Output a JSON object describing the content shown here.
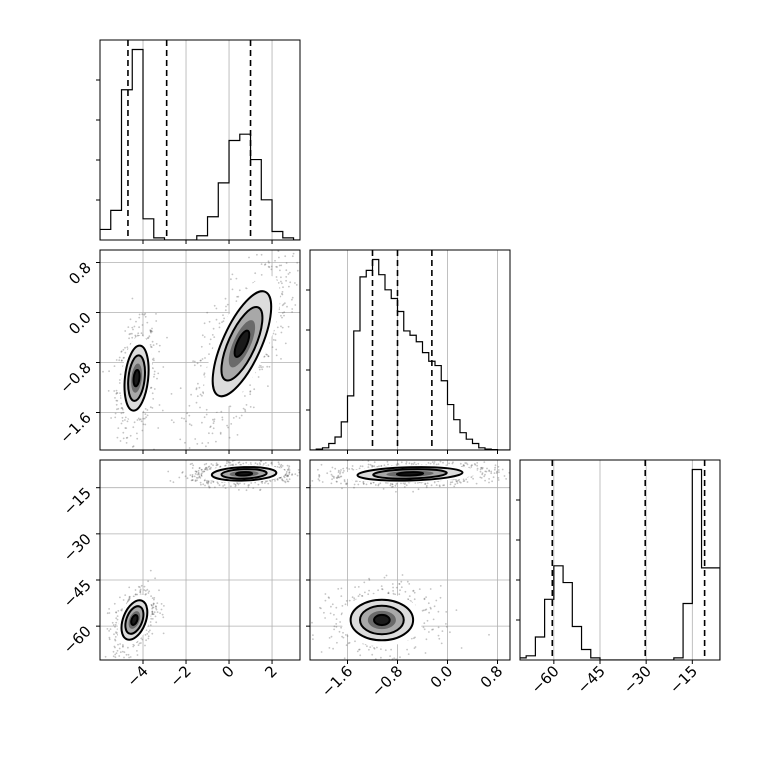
{
  "chart_data": {
    "type": "corner",
    "title": "",
    "parameters": [
      {
        "name": "p0",
        "label": "",
        "range": [
          -6,
          3.3
        ],
        "ticks": [
          -4,
          -2,
          0,
          2
        ],
        "tick_labels": [
          "−4",
          "−2",
          "0",
          "2"
        ]
      },
      {
        "name": "p1",
        "label": "",
        "range": [
          -2.2,
          1.0
        ],
        "ticks": [
          -1.6,
          -0.8,
          0.0,
          0.8
        ],
        "tick_labels": [
          "−1.6",
          "−0.8",
          "0.0",
          "0.8"
        ]
      },
      {
        "name": "p2",
        "label": "",
        "range": [
          -71,
          -6
        ],
        "ticks": [
          -60,
          -45,
          -30,
          -15
        ],
        "tick_labels": [
          "−60",
          "−45",
          "−30",
          "−15"
        ]
      }
    ],
    "grid": true,
    "histograms": [
      {
        "param": 0,
        "bin_width": 0.5,
        "centers": [
          -6.25,
          -5.75,
          -5.25,
          -4.75,
          -4.25,
          -3.75,
          -3.25,
          -2.75,
          -2.25,
          -1.75,
          -1.25,
          -0.75,
          -0.25,
          0.25,
          0.75,
          1.25,
          1.75,
          2.25,
          2.75,
          3.25
        ],
        "values": [
          0,
          0.05,
          0.14,
          0.71,
          0.9,
          0.1,
          0.01,
          0,
          0,
          0,
          0.02,
          0.11,
          0.27,
          0.47,
          0.5,
          0.38,
          0.19,
          0.04,
          0.01,
          0
        ],
        "quantiles": [
          -4.7,
          -2.9,
          1.0
        ]
      },
      {
        "param": 1,
        "bin_width": 0.1,
        "centers": [
          -2.15,
          -2.05,
          -1.95,
          -1.85,
          -1.75,
          -1.65,
          -1.55,
          -1.45,
          -1.35,
          -1.25,
          -1.15,
          -1.05,
          -0.95,
          -0.85,
          -0.75,
          -0.65,
          -0.55,
          -0.45,
          -0.35,
          -0.25,
          -0.15,
          -0.05,
          0.05,
          0.15,
          0.25,
          0.35,
          0.45,
          0.55,
          0.65,
          0.75,
          0.85,
          0.95
        ],
        "values": [
          0,
          0.004,
          0.01,
          0.03,
          0.06,
          0.13,
          0.25,
          0.55,
          0.8,
          0.83,
          0.88,
          0.81,
          0.74,
          0.7,
          0.64,
          0.55,
          0.53,
          0.5,
          0.45,
          0.41,
          0.39,
          0.32,
          0.21,
          0.14,
          0.08,
          0.05,
          0.03,
          0.01,
          0.004,
          0.002,
          0,
          0
        ],
        "quantiles": [
          -1.2,
          -0.8,
          -0.25
        ]
      },
      {
        "param": 2,
        "bin_width": 3,
        "centers": [
          -70.5,
          -67.5,
          -64.5,
          -61.5,
          -58.5,
          -55.5,
          -52.5,
          -49.5,
          -46.5,
          -43.5,
          -40.5,
          -37.5,
          -34.5,
          -31.5,
          -28.5,
          -25.5,
          -22.5,
          -19.5,
          -16.5,
          -13.5,
          -10.5,
          -7.5
        ],
        "values": [
          0.01,
          0.02,
          0.11,
          0.29,
          0.45,
          0.37,
          0.16,
          0.05,
          0.01,
          0,
          0,
          0,
          0,
          0,
          0,
          0,
          0,
          0.01,
          0.27,
          0.91,
          0.44,
          0.44
        ],
        "quantiles": [
          -60.5,
          -30.3,
          -11.0
        ]
      }
    ],
    "clusters_2d": [
      {
        "x_param": 0,
        "y_param": 1,
        "center": [
          -4.3,
          -1.05
        ],
        "sd": [
          0.28,
          0.26
        ],
        "corr": 0.25,
        "weight": 0.4
      },
      {
        "x_param": 0,
        "y_param": 1,
        "center": [
          0.6,
          -0.5
        ],
        "sd": [
          0.68,
          0.42
        ],
        "corr": 0.7,
        "weight": 0.6
      },
      {
        "x_param": 0,
        "y_param": 2,
        "center": [
          -4.4,
          -58
        ],
        "sd": [
          0.3,
          3.2
        ],
        "corr": 0.4,
        "weight": 0.4
      },
      {
        "x_param": 0,
        "y_param": 2,
        "center": [
          0.7,
          -10.5
        ],
        "sd": [
          0.75,
          1.1
        ],
        "corr": 0.15,
        "weight": 0.6
      },
      {
        "x_param": 1,
        "y_param": 2,
        "center": [
          -1.05,
          -58
        ],
        "sd": [
          0.25,
          3.3
        ],
        "corr": 0.0,
        "weight": 0.4
      },
      {
        "x_param": 1,
        "y_param": 2,
        "center": [
          -0.6,
          -10.5
        ],
        "sd": [
          0.42,
          1.1
        ],
        "corr": 0.2,
        "weight": 0.6
      }
    ]
  }
}
